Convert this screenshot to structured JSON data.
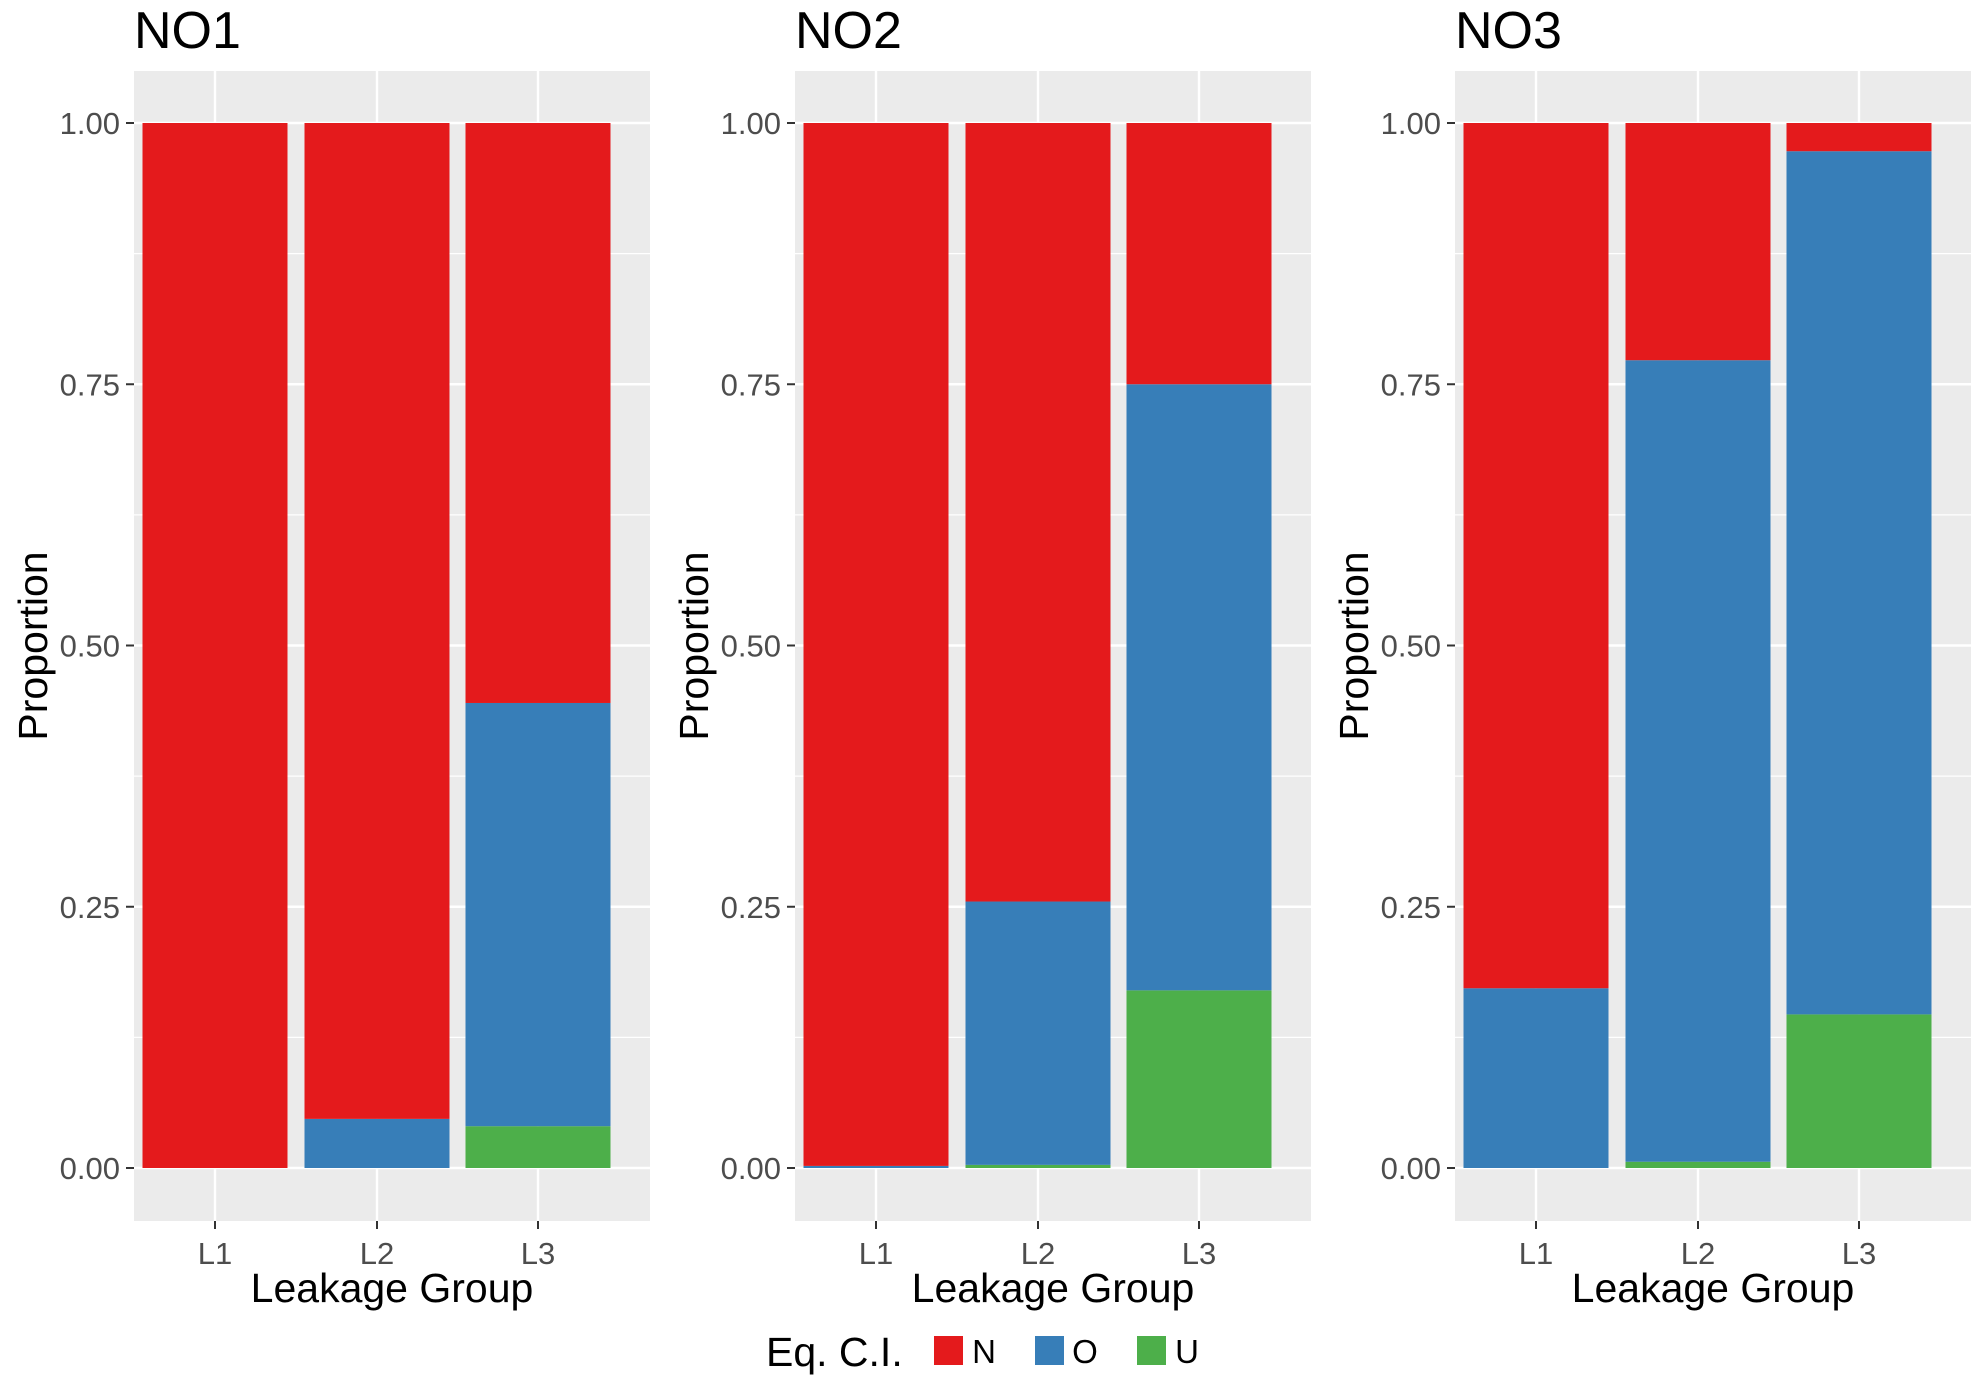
{
  "chart_data": {
    "type": "bar",
    "stacked": true,
    "categories": [
      "L1",
      "L2",
      "L3"
    ],
    "xlabel": "Leakage Group",
    "ylabel": "Proportion",
    "ylim": [
      0,
      1
    ],
    "yticks": [
      "0.00",
      "0.25",
      "0.50",
      "0.75",
      "1.00"
    ],
    "grid": true,
    "legend": {
      "title": "Eq. C.I.",
      "position": "bottom",
      "entries": [
        {
          "name": "N",
          "color": "#E41A1C"
        },
        {
          "name": "O",
          "color": "#377EB8"
        },
        {
          "name": "U",
          "color": "#4DAF4A"
        }
      ]
    },
    "panels": [
      {
        "title": "NO1",
        "series": [
          {
            "name": "N",
            "values": [
              1.0,
              0.953,
              0.555
            ]
          },
          {
            "name": "O",
            "values": [
              0.0,
              0.047,
              0.405
            ]
          },
          {
            "name": "U",
            "values": [
              0.0,
              0.0,
              0.04
            ]
          }
        ]
      },
      {
        "title": "NO2",
        "series": [
          {
            "name": "N",
            "values": [
              0.998,
              0.745,
              0.25
            ]
          },
          {
            "name": "O",
            "values": [
              0.002,
              0.252,
              0.58
            ]
          },
          {
            "name": "U",
            "values": [
              0.0,
              0.003,
              0.17
            ]
          }
        ]
      },
      {
        "title": "NO3",
        "series": [
          {
            "name": "N",
            "values": [
              0.828,
              0.227,
              0.027
            ]
          },
          {
            "name": "O",
            "values": [
              0.172,
              0.767,
              0.826
            ]
          },
          {
            "name": "U",
            "values": [
              0.0,
              0.006,
              0.147
            ]
          }
        ]
      }
    ]
  }
}
